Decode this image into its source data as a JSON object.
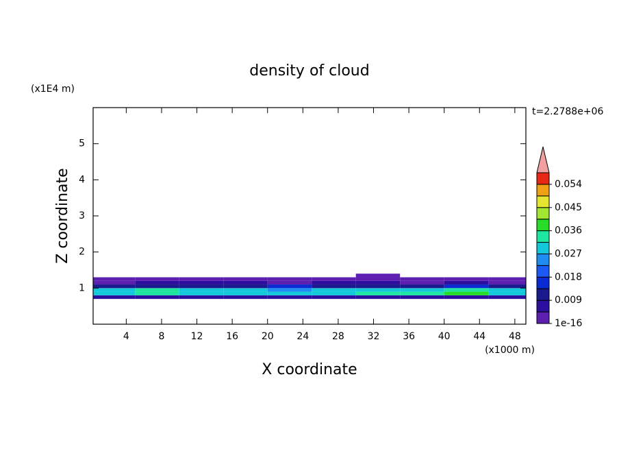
{
  "chart_data": {
    "type": "contour",
    "title": "density of cloud",
    "xlabel": "X coordinate",
    "ylabel": "Z coordinate",
    "x_unit": "(x1000 m)",
    "y_unit": "(x1E4 m)",
    "annotation": "t=2.2788e+06",
    "xlim": [
      0.25,
      49.25
    ],
    "ylim": [
      0,
      6
    ],
    "xticks": [
      4,
      8,
      12,
      16,
      20,
      24,
      28,
      32,
      36,
      40,
      44,
      48
    ],
    "yticks": [
      1,
      2,
      3,
      4,
      5
    ],
    "x_edges": [
      0.25,
      5,
      10,
      15,
      20,
      25,
      30,
      35,
      40,
      45,
      49.25
    ],
    "z_edges": [
      0.7,
      0.8,
      0.9,
      1.0,
      1.1,
      1.2,
      1.3,
      1.4
    ],
    "values": [
      [
        0.008,
        0.007,
        0.008,
        0.007,
        0.008,
        0.007,
        0.008,
        0.007,
        0.008,
        0.007
      ],
      [
        0.03,
        0.033,
        0.031,
        0.029,
        0.028,
        0.03,
        0.032,
        0.033,
        0.036,
        0.031
      ],
      [
        0.028,
        0.032,
        0.03,
        0.027,
        0.024,
        0.029,
        0.03,
        0.028,
        0.033,
        0.027
      ],
      [
        0.01,
        0.011,
        0.013,
        0.011,
        0.016,
        0.012,
        0.011,
        0.01,
        0.014,
        0.012
      ],
      [
        0.003,
        0.005,
        0.006,
        0.005,
        0.004,
        0.006,
        0.005,
        0.004,
        0.005,
        0.004
      ],
      [
        0.001,
        0.002,
        0.002,
        0.002,
        0.001,
        0.002,
        0.002,
        0.001,
        0.001,
        0.001
      ],
      [
        0,
        0,
        0,
        0,
        0,
        0,
        0.001,
        0,
        0,
        0
      ]
    ],
    "levels": [
      1e-16,
      0.0045,
      0.009,
      0.0135,
      0.018,
      0.0225,
      0.027,
      0.0315,
      0.036,
      0.0405,
      0.045,
      0.0495,
      0.054,
      0.0585
    ],
    "level_colors": [
      "#5c1fb0",
      "#2d0fa0",
      "#1a1a8c",
      "#0a2ad2",
      "#1b5af5",
      "#1e8cf0",
      "#14c8dc",
      "#1ee6a0",
      "#28dc28",
      "#a0e632",
      "#e6e632",
      "#f0a014",
      "#e62814"
    ],
    "extend_color": "#f0a0a0",
    "colorbar_ticks": [
      1e-16,
      0.009,
      0.018,
      0.027,
      0.036,
      0.045,
      0.054
    ]
  }
}
